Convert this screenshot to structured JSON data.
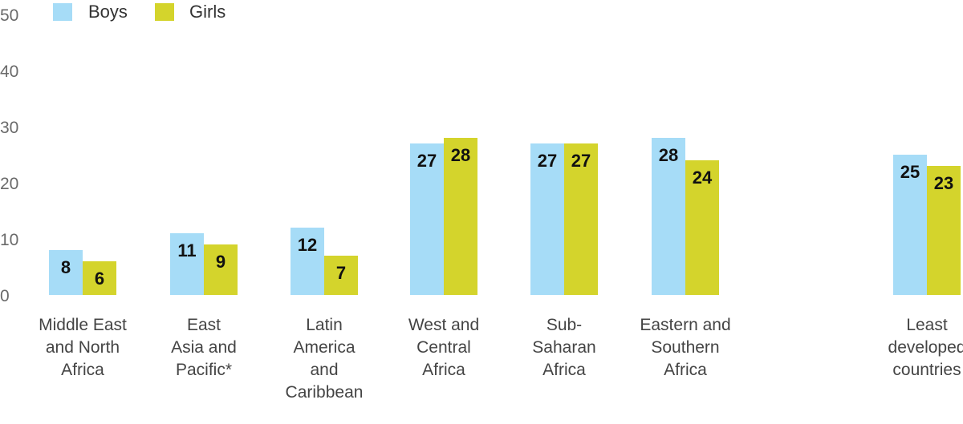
{
  "chart_data": {
    "type": "bar",
    "categories": [
      [
        "Middle East",
        "and North",
        "Africa"
      ],
      [
        "East",
        "Asia and",
        "Pacific*"
      ],
      [
        "Latin",
        "America",
        "and",
        "Caribbean"
      ],
      [
        "West and",
        "Central",
        "Africa"
      ],
      [
        "Sub-",
        "Saharan",
        "Africa"
      ],
      [
        "Eastern and",
        "Southern",
        "Africa"
      ],
      [
        "Least",
        "developed",
        "countries"
      ]
    ],
    "series": [
      {
        "name": "Boys",
        "color": "#a6dcf7",
        "values": [
          8,
          11,
          12,
          27,
          27,
          28,
          25
        ]
      },
      {
        "name": "Girls",
        "color": "#d4d42c",
        "values": [
          6,
          9,
          7,
          28,
          27,
          24,
          23
        ]
      }
    ],
    "y_ticks": [
      "0",
      "10",
      "20",
      "30",
      "40",
      "50"
    ],
    "ylim": [
      0,
      50
    ],
    "grid": false,
    "legend_position": "top-left",
    "data_labels": true
  }
}
